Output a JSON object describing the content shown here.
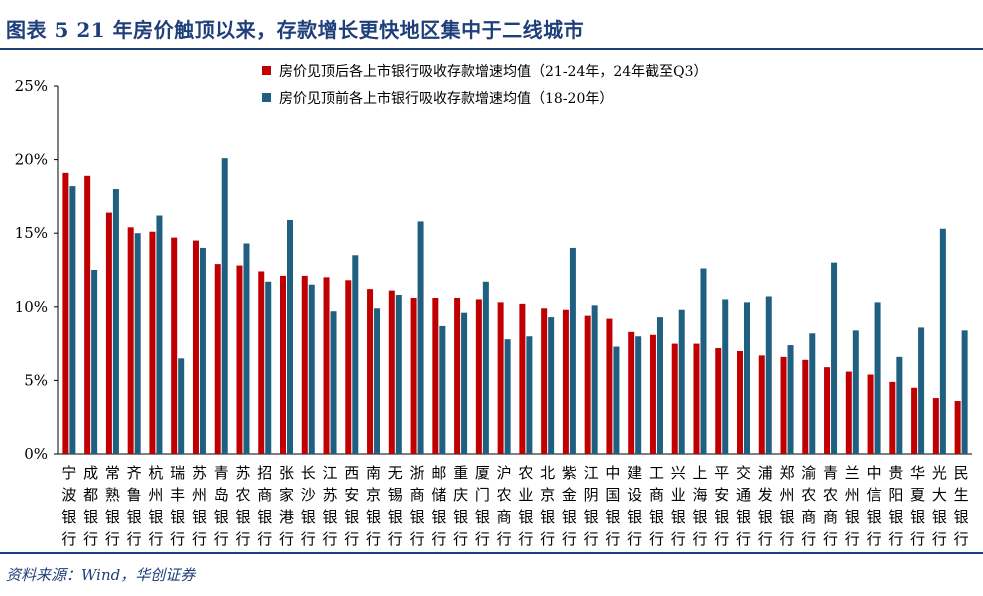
{
  "title": "图表 5   21 年房价触顶以来，存款增长更快地区集中于二线城市",
  "source": "资料来源：Wind，华创证券",
  "colors": {
    "series1": "#c00000",
    "series2": "#1f5f7f",
    "frame": "#1f3f7a"
  },
  "chart_data": {
    "type": "bar",
    "ylim": [
      0,
      25
    ],
    "yticks": [
      0,
      5,
      10,
      15,
      20,
      25
    ],
    "ytick_labels": [
      "0%",
      "5%",
      "10%",
      "15%",
      "20%",
      "25%"
    ],
    "legend_position": "top-center",
    "categories": [
      "宁波银行",
      "成都银行",
      "常熟银行",
      "齐鲁银行",
      "杭州银行",
      "瑞丰银行",
      "苏州银行",
      "青岛银行",
      "苏农银行",
      "招商银行",
      "张家港行",
      "长沙银行",
      "江苏银行",
      "西安银行",
      "南京银行",
      "无锡银行",
      "浙商银行",
      "邮储银行",
      "重庆银行",
      "厦门银行",
      "沪农商行",
      "农业银行",
      "北京银行",
      "紫金银行",
      "江阴银行",
      "中国银行",
      "建设银行",
      "工商银行",
      "兴业银行",
      "上海银行",
      "平安银行",
      "交通银行",
      "浦发银行",
      "郑州银行",
      "渝农商行",
      "青农商行",
      "兰州银行",
      "中信银行",
      "贵阳银行",
      "华夏银行",
      "光大银行",
      "民生银行"
    ],
    "series": [
      {
        "name": "房价见顶后各上市银行吸收存款增速均值（21-24年，24年截至Q3）",
        "values": [
          19.1,
          18.9,
          16.4,
          15.4,
          15.1,
          14.7,
          14.5,
          12.9,
          12.8,
          12.4,
          12.1,
          12.1,
          12.0,
          11.8,
          11.2,
          11.1,
          10.6,
          10.6,
          10.6,
          10.5,
          10.3,
          10.2,
          9.9,
          9.8,
          9.4,
          9.2,
          8.3,
          8.1,
          7.5,
          7.5,
          7.2,
          7.0,
          6.7,
          6.6,
          6.4,
          5.9,
          5.6,
          5.4,
          4.9,
          4.5,
          3.8,
          3.6
        ]
      },
      {
        "name": "房价见顶前各上市银行吸收存款增速均值（18-20年）",
        "values": [
          18.2,
          12.5,
          18.0,
          15.0,
          16.2,
          6.5,
          14.0,
          20.1,
          14.3,
          11.7,
          15.9,
          11.5,
          9.7,
          13.5,
          9.9,
          10.8,
          15.8,
          8.7,
          9.6,
          11.7,
          7.8,
          8.0,
          9.3,
          14.0,
          10.1,
          7.3,
          8.0,
          9.3,
          9.8,
          12.6,
          10.5,
          10.3,
          10.7,
          7.4,
          8.2,
          13.0,
          8.4,
          10.3,
          6.6,
          8.6,
          15.3,
          8.4
        ]
      }
    ]
  }
}
